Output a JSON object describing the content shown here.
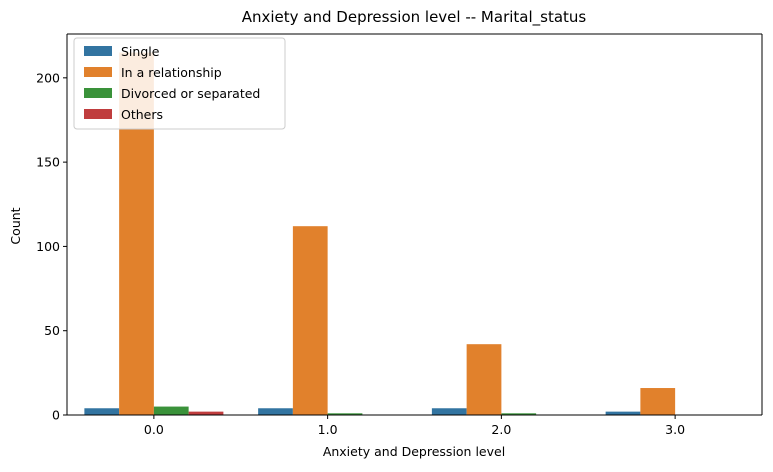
{
  "chart_data": {
    "type": "bar",
    "title": "Anxiety and Depression level -- Marital_status",
    "xlabel": "Anxiety and Depression level",
    "ylabel": "Count",
    "categories": [
      "0.0",
      "1.0",
      "2.0",
      "3.0"
    ],
    "ylim": [
      0,
      226
    ],
    "yticks": [
      0,
      50,
      100,
      150,
      200
    ],
    "grid": false,
    "legend_position": "top-left",
    "series": [
      {
        "name": "Single",
        "color": "#3274a1",
        "values": [
          4,
          4,
          4,
          2
        ]
      },
      {
        "name": "In a relationship",
        "color": "#e1812c",
        "values": [
          215,
          112,
          42,
          16
        ]
      },
      {
        "name": "Divorced or separated",
        "color": "#3a923a",
        "values": [
          5,
          1,
          1,
          0
        ]
      },
      {
        "name": "Others",
        "color": "#c03d3e",
        "values": [
          2,
          0,
          0,
          0
        ]
      }
    ]
  }
}
